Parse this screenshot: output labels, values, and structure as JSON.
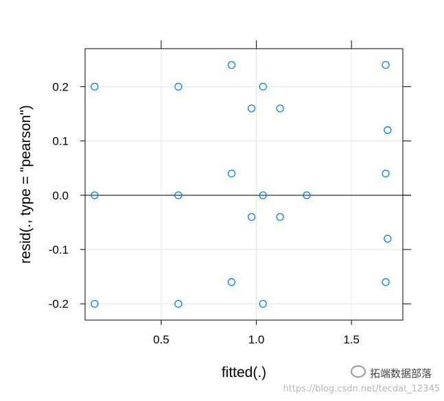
{
  "chart_data": {
    "type": "scatter",
    "xlabel": "fitted(.)",
    "ylabel": "resid(., type = \"pearson\")",
    "xlim": [
      0.1,
      1.77
    ],
    "ylim": [
      -0.23,
      0.27
    ],
    "x_ticks": [
      0.5,
      1.0,
      1.5
    ],
    "x_tick_labels": [
      "0.5",
      "1.0",
      "1.5"
    ],
    "y_ticks": [
      -0.2,
      -0.1,
      0.0,
      0.1,
      0.2
    ],
    "y_tick_labels": [
      "-0.2",
      "-0.1",
      "0.0",
      "0.1",
      "0.2"
    ],
    "reference_line_y": 0,
    "grid": true,
    "point_color": "#0080ff",
    "points": [
      {
        "x": 0.15,
        "y": 0.2
      },
      {
        "x": 0.15,
        "y": 0.0
      },
      {
        "x": 0.15,
        "y": -0.2
      },
      {
        "x": 0.59,
        "y": 0.2
      },
      {
        "x": 0.59,
        "y": 0.0
      },
      {
        "x": 0.59,
        "y": -0.2
      },
      {
        "x": 0.87,
        "y": 0.24
      },
      {
        "x": 0.87,
        "y": 0.04
      },
      {
        "x": 0.87,
        "y": -0.16
      },
      {
        "x": 0.975,
        "y": 0.16
      },
      {
        "x": 0.975,
        "y": -0.04
      },
      {
        "x": 1.035,
        "y": 0.2
      },
      {
        "x": 1.035,
        "y": 0.0
      },
      {
        "x": 1.035,
        "y": -0.2
      },
      {
        "x": 1.125,
        "y": 0.16
      },
      {
        "x": 1.125,
        "y": -0.04
      },
      {
        "x": 1.265,
        "y": 0.0
      },
      {
        "x": 1.68,
        "y": 0.24
      },
      {
        "x": 1.68,
        "y": 0.04
      },
      {
        "x": 1.68,
        "y": -0.16
      },
      {
        "x": 1.69,
        "y": 0.12
      },
      {
        "x": 1.69,
        "y": -0.08
      }
    ]
  },
  "brand_text": "拓端数据部落",
  "watermark_text": "https://blog.csdn.net/tecdat_12345"
}
